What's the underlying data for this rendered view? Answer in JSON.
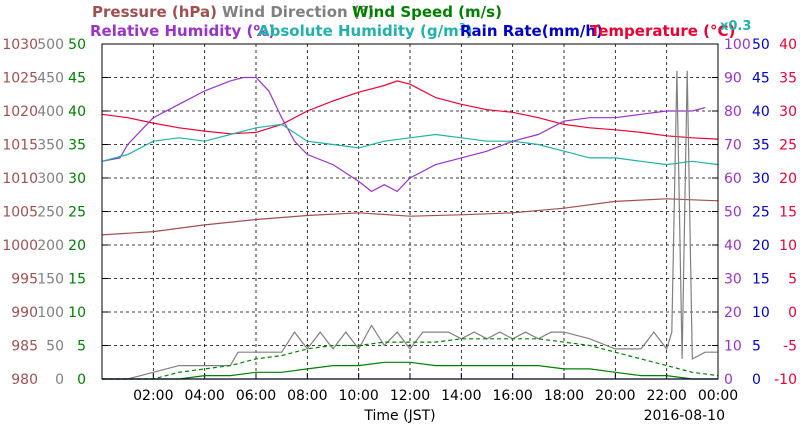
{
  "chart_data": {
    "type": "line",
    "date": "2016-08-10",
    "xlabel": "Time (JST)",
    "x_range_hours": [
      0,
      24
    ],
    "x_ticks": [
      "02:00",
      "04:00",
      "06:00",
      "08:00",
      "10:00",
      "12:00",
      "14:00",
      "16:00",
      "18:00",
      "20:00",
      "22:00",
      "00:00"
    ],
    "grid": true,
    "legend": {
      "pressure": "Pressure (hPa)",
      "wind_dir": "Wind Direction (°)",
      "wind_speed": "Wind Speed (m/s)",
      "rh": "Relative Humidity (%)",
      "abs_hum": "Absolute Humidity (g/m",
      "abs_hum_sup": "3",
      "abs_hum_close": ")",
      "rain": "Rain Rate(mm/h)",
      "temp": "Temperature (°C)",
      "rain_scale": "x0.3"
    },
    "axes": {
      "pressure": {
        "color": "#a05050",
        "range": [
          980,
          1030
        ],
        "ticks": [
          "1030",
          "1025",
          "1020",
          "1015",
          "1010",
          "1005",
          "1000",
          "995",
          "990",
          "985",
          "980"
        ]
      },
      "wind_dir": {
        "color": "#808080",
        "range": [
          0,
          500
        ],
        "ticks": [
          "500",
          "450",
          "400",
          "350",
          "300",
          "250",
          "200",
          "150",
          "100",
          "50",
          "0"
        ]
      },
      "wind_speed": {
        "color": "#008000",
        "range": [
          0,
          50
        ],
        "ticks": [
          "50",
          "45",
          "40",
          "35",
          "30",
          "25",
          "20",
          "15",
          "10",
          "5",
          "0"
        ]
      },
      "rh": {
        "color": "#9933cc",
        "range": [
          0,
          100
        ],
        "ticks": [
          "100",
          "90",
          "80",
          "70",
          "60",
          "50",
          "40",
          "30",
          "20",
          "10",
          "0"
        ]
      },
      "rain": {
        "color": "#0000cc",
        "range": [
          0,
          50
        ],
        "ticks": [
          "50",
          "45",
          "40",
          "35",
          "30",
          "25",
          "20",
          "15",
          "10",
          "5",
          "0"
        ]
      },
      "temp": {
        "color": "#ee0033",
        "range": [
          -10,
          40
        ],
        "ticks": [
          "40",
          "35",
          "30",
          "25",
          "20",
          "15",
          "10",
          "5",
          "0",
          "-5",
          "-10"
        ]
      }
    },
    "series": [
      {
        "name": "Temperature (°C)",
        "key": "temp",
        "color": "#ee0033",
        "x": [
          0,
          1,
          2,
          3,
          4,
          5,
          6,
          7,
          8,
          9,
          10,
          11,
          11.5,
          12,
          13,
          14,
          15,
          16,
          17,
          18,
          19,
          20,
          21,
          22,
          23,
          24
        ],
        "values": [
          29.5,
          29,
          28.2,
          27.5,
          27,
          26.6,
          26.8,
          28,
          30,
          31.5,
          32.8,
          33.8,
          34.5,
          34,
          32,
          31,
          30.2,
          29.8,
          29,
          28,
          27.5,
          27.2,
          26.8,
          26.3,
          26,
          25.8
        ]
      },
      {
        "name": "Relative Humidity (%)",
        "key": "rh",
        "color": "#9933cc",
        "x": [
          0,
          0.7,
          1,
          2,
          3,
          4,
          5,
          5.5,
          6,
          6.5,
          7,
          7.5,
          8,
          9,
          10,
          10.5,
          11,
          11.5,
          12,
          13,
          14,
          15,
          16,
          17,
          18,
          19,
          20,
          21,
          22,
          23,
          23.5
        ],
        "values": [
          65,
          66,
          70,
          78,
          82,
          86,
          89,
          90,
          90,
          86,
          78,
          71,
          67,
          64,
          59,
          56,
          58,
          56,
          60,
          64,
          66,
          68,
          71,
          73,
          77,
          78,
          78,
          79,
          80,
          80,
          81
        ]
      },
      {
        "name": "Absolute Humidity (g/m3)",
        "key": "abs_hum",
        "color": "#20b2aa",
        "x": [
          0,
          1,
          2,
          3,
          4,
          5,
          6,
          7,
          8,
          9,
          10,
          11,
          12,
          13,
          14,
          15,
          16,
          17,
          18,
          19,
          20,
          21,
          22,
          23,
          24
        ],
        "values": [
          32.5,
          33.5,
          35.5,
          36,
          35.5,
          36.5,
          37.5,
          38,
          35.5,
          35,
          34.5,
          35.5,
          36,
          36.5,
          36,
          35.5,
          35.5,
          35,
          34,
          33,
          33,
          32.5,
          32,
          32.5,
          32
        ]
      },
      {
        "name": "Pressure (hPa)",
        "key": "pressure",
        "color": "#a05050",
        "x": [
          0,
          2,
          4,
          6,
          8,
          10,
          12,
          14,
          16,
          18,
          20,
          22,
          24
        ],
        "values": [
          1001.5,
          1002,
          1003,
          1003.8,
          1004.4,
          1004.8,
          1004.3,
          1004.5,
          1004.8,
          1005.5,
          1006.5,
          1006.9,
          1006.6
        ]
      },
      {
        "name": "Wind Direction (°)",
        "key": "wind_dir",
        "color": "#808080",
        "x": [
          0,
          1,
          2,
          3,
          4,
          5,
          5.3,
          6,
          7,
          7.5,
          8,
          8.5,
          9,
          9.5,
          10,
          10.5,
          11,
          11.5,
          12,
          12.5,
          13,
          13.5,
          14,
          14.5,
          15,
          15.5,
          16,
          16.5,
          17,
          17.5,
          18,
          19,
          20,
          21,
          21.5,
          22,
          22.2,
          22.4,
          22.6,
          22.8,
          23,
          23.5,
          24
        ],
        "values": [
          0,
          0,
          10,
          20,
          20,
          20,
          40,
          40,
          40,
          70,
          45,
          70,
          45,
          70,
          45,
          80,
          50,
          70,
          45,
          70,
          70,
          70,
          60,
          70,
          60,
          70,
          60,
          70,
          60,
          70,
          70,
          60,
          45,
          45,
          70,
          45,
          70,
          460,
          30,
          460,
          30,
          40,
          40
        ]
      },
      {
        "name": "Wind Speed (m/s) avg",
        "key": "wind_speed",
        "color": "#008000",
        "dash": "4,3",
        "x": [
          0,
          2,
          3,
          4,
          5,
          6,
          7,
          8,
          9,
          10,
          11,
          12,
          13,
          14,
          15,
          16,
          17,
          18,
          19,
          20,
          21,
          22,
          23,
          24
        ],
        "values": [
          0,
          0,
          1,
          1.5,
          2,
          3,
          3.5,
          4.5,
          5,
          5,
          5.5,
          5.5,
          5.5,
          6,
          6,
          6,
          6,
          5.5,
          5,
          4,
          3,
          2,
          1,
          0.5
        ]
      },
      {
        "name": "Wind Speed (m/s) min",
        "key": "wind_speed",
        "color": "#008000",
        "x": [
          0,
          2,
          3,
          4,
          5,
          6,
          7,
          8,
          9,
          10,
          11,
          12,
          13,
          14,
          15,
          16,
          17,
          18,
          19,
          20,
          21,
          22,
          23,
          24
        ],
        "values": [
          0,
          0,
          0,
          0.5,
          0.5,
          1,
          1,
          1.5,
          2,
          2,
          2.5,
          2.5,
          2,
          2,
          2,
          2,
          2,
          1.5,
          1.5,
          1,
          0.5,
          0.5,
          0,
          0
        ]
      },
      {
        "name": "Rain Rate (mm/h)",
        "key": "rain",
        "color": "#0000cc",
        "x": [
          0,
          24
        ],
        "values": [
          0,
          0
        ]
      }
    ]
  }
}
